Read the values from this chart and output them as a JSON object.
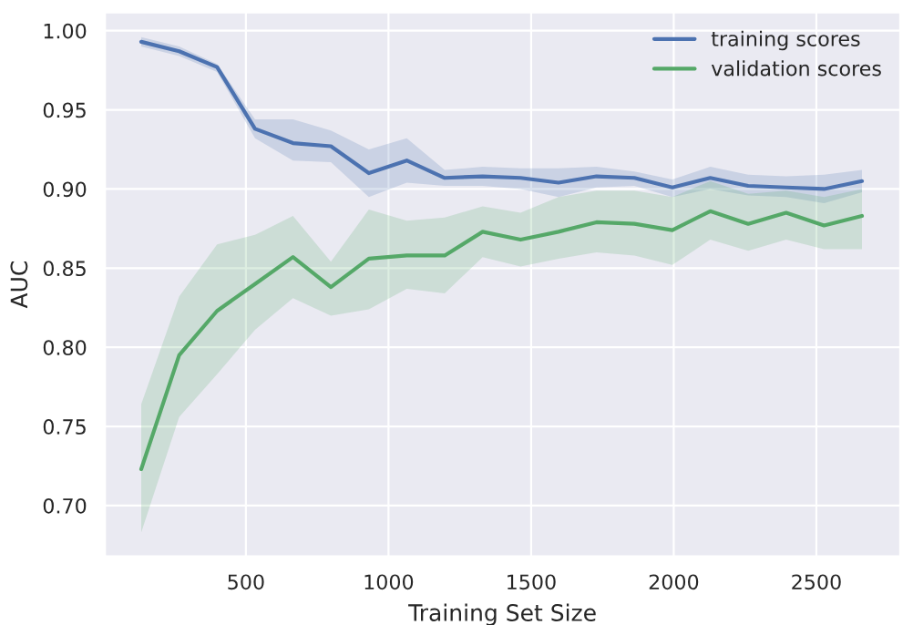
{
  "chart_data": {
    "type": "line",
    "xlabel": "Training Set Size",
    "ylabel": "AUC",
    "x": [
      133,
      266,
      399,
      532,
      665,
      798,
      931,
      1064,
      1197,
      1330,
      1463,
      1596,
      1729,
      1862,
      1995,
      2128,
      2261,
      2394,
      2527,
      2660
    ],
    "series": [
      {
        "name": "training scores",
        "color": "#4c72b0",
        "values": [
          0.993,
          0.987,
          0.977,
          0.938,
          0.929,
          0.927,
          0.91,
          0.918,
          0.907,
          0.908,
          0.907,
          0.904,
          0.908,
          0.907,
          0.901,
          0.907,
          0.902,
          0.901,
          0.9,
          0.905
        ],
        "upper": [
          0.996,
          0.99,
          0.979,
          0.944,
          0.944,
          0.937,
          0.925,
          0.932,
          0.912,
          0.914,
          0.913,
          0.913,
          0.914,
          0.911,
          0.906,
          0.914,
          0.909,
          0.908,
          0.909,
          0.912
        ],
        "lower": [
          0.99,
          0.984,
          0.974,
          0.932,
          0.918,
          0.917,
          0.895,
          0.904,
          0.902,
          0.902,
          0.9,
          0.895,
          0.901,
          0.902,
          0.895,
          0.9,
          0.896,
          0.895,
          0.891,
          0.898
        ]
      },
      {
        "name": "validation scores",
        "color": "#55a868",
        "values": [
          0.723,
          0.795,
          0.823,
          0.84,
          0.857,
          0.838,
          0.856,
          0.858,
          0.858,
          0.873,
          0.868,
          0.873,
          0.879,
          0.878,
          0.874,
          0.886,
          0.878,
          0.885,
          0.877,
          0.883
        ],
        "upper": [
          0.764,
          0.832,
          0.865,
          0.871,
          0.883,
          0.854,
          0.887,
          0.88,
          0.882,
          0.889,
          0.885,
          0.895,
          0.899,
          0.899,
          0.895,
          0.905,
          0.897,
          0.899,
          0.895,
          0.9
        ],
        "lower": [
          0.683,
          0.756,
          0.783,
          0.811,
          0.831,
          0.82,
          0.824,
          0.837,
          0.834,
          0.857,
          0.851,
          0.856,
          0.86,
          0.858,
          0.852,
          0.868,
          0.861,
          0.868,
          0.862,
          0.862
        ]
      }
    ],
    "xlim": [
      6,
      2794
    ],
    "ylim": [
      0.668,
      1.0115
    ],
    "xticks": [
      500,
      1000,
      1500,
      2000,
      2500
    ],
    "yticks": [
      {
        "value": 0.7,
        "label": "0.70"
      },
      {
        "value": 0.75,
        "label": "0.75"
      },
      {
        "value": 0.8,
        "label": "0.80"
      },
      {
        "value": 0.85,
        "label": "0.85"
      },
      {
        "value": 0.9,
        "label": "0.90"
      },
      {
        "value": 0.95,
        "label": "0.95"
      },
      {
        "value": 1.0,
        "label": "1.00"
      }
    ],
    "grid": true,
    "legend": "top right",
    "marker": "none",
    "line_style": "solid"
  }
}
